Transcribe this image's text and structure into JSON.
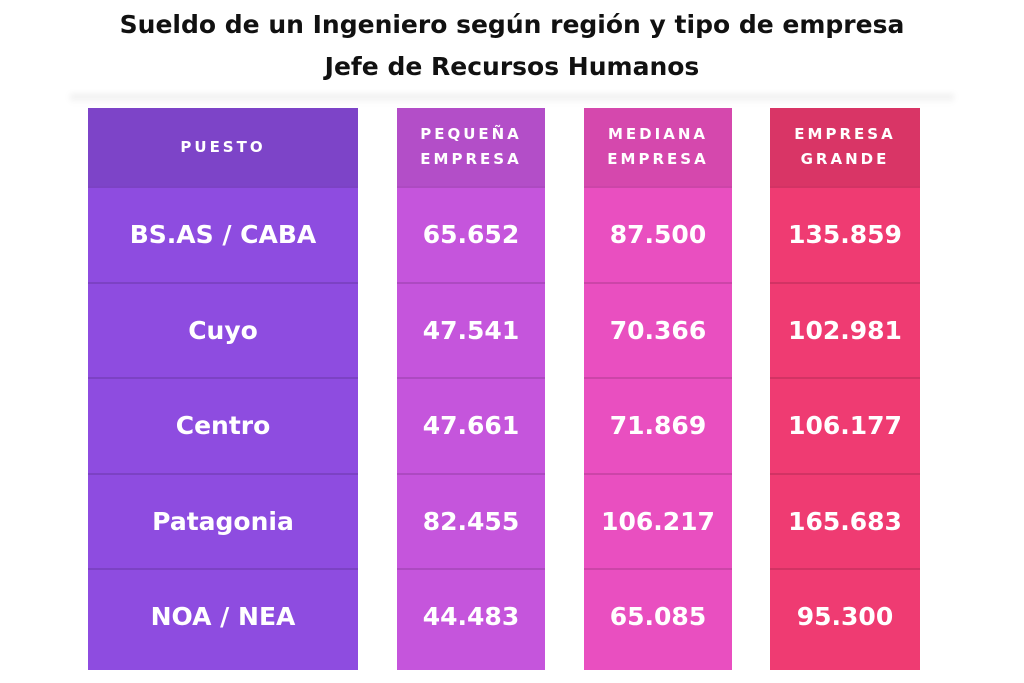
{
  "title_line1": "Sueldo de un Ingeniero según región y tipo de empresa",
  "title_line2": "Jefe de Recursos Humanos",
  "chart_data": {
    "type": "table",
    "columns": [
      "PUESTO",
      "PEQUEÑA\nEMPRESA",
      "MEDIANA\nEMPRESA",
      "EMPRESA\nGRANDE"
    ],
    "rows": [
      [
        "BS.AS / CABA",
        "65.652",
        "87.500",
        "135.859"
      ],
      [
        "Cuyo",
        "47.541",
        "70.366",
        "102.981"
      ],
      [
        "Centro",
        "47.661",
        "71.869",
        "106.177"
      ],
      [
        "Patagonia",
        "82.455",
        "106.217",
        "165.683"
      ],
      [
        "NOA / NEA",
        "44.483",
        "65.085",
        "95.300"
      ]
    ]
  },
  "colors": {
    "puesto": "#8e4ce0",
    "pequena": "#c555dc",
    "mediana": "#e94fc0",
    "grande": "#ef3b72"
  }
}
